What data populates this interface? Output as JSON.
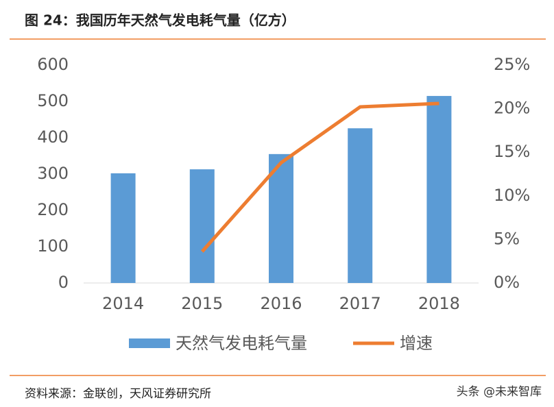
{
  "chart_data": {
    "type": "bar-line",
    "title": "图 24：我国历年天然气发电耗气量（亿方）",
    "categories": [
      "2014",
      "2015",
      "2016",
      "2017",
      "2018"
    ],
    "series": [
      {
        "name": "天然气发电耗气量",
        "type": "bar",
        "color": "#5b9bd5",
        "values": [
          302,
          313,
          355,
          426,
          515
        ]
      },
      {
        "name": "增速",
        "type": "line",
        "axis": "y2",
        "color": "#ed7d31",
        "values": [
          null,
          3.6,
          13.8,
          20.2,
          20.6
        ]
      }
    ],
    "ylim": [
      0,
      600
    ],
    "yticks": [
      0,
      100,
      200,
      300,
      400,
      500,
      600
    ],
    "y2lim": [
      0,
      25
    ],
    "y2ticks": [
      {
        "value": 0,
        "label": "0%"
      },
      {
        "value": 5,
        "label": "5%"
      },
      {
        "value": 10,
        "label": "10%"
      },
      {
        "value": 15,
        "label": "15%"
      },
      {
        "value": 20,
        "label": "20%"
      },
      {
        "value": 25,
        "label": "25%"
      }
    ],
    "legend": "bottom"
  },
  "footer": {
    "source": "资料来源：金联创，天风证券研究所",
    "watermark": "头条 @未来智库"
  }
}
